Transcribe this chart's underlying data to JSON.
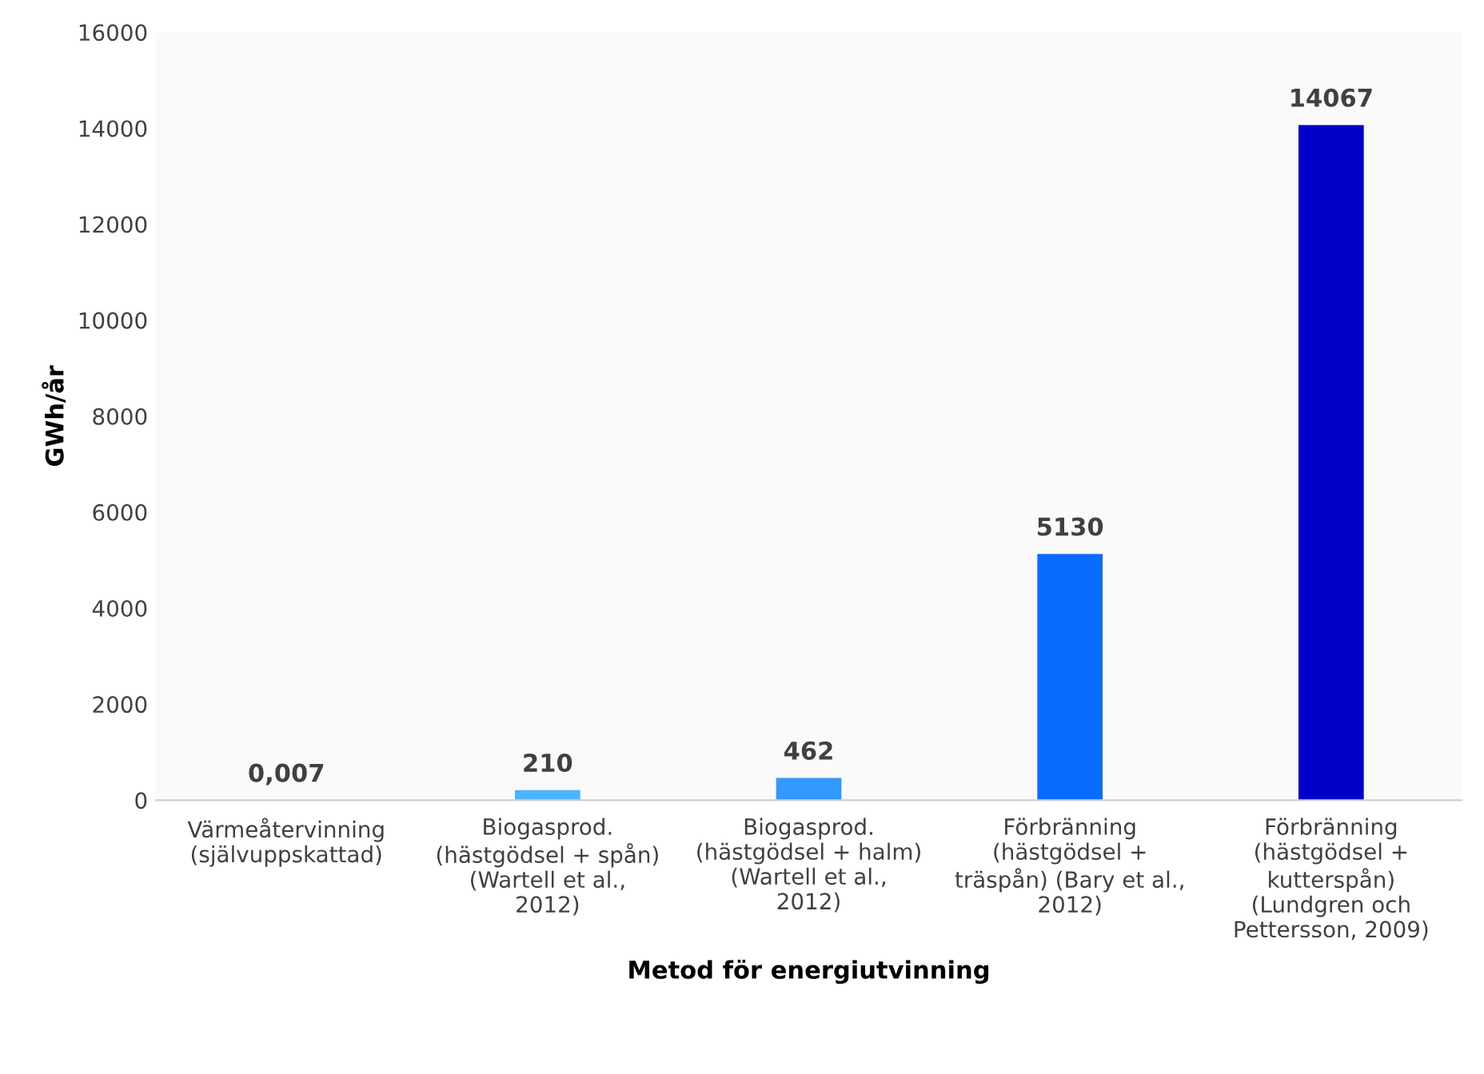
{
  "chart_data": {
    "type": "bar",
    "xlabel": "Metod för energiutvinning",
    "ylabel": "GWh/år",
    "categories": [
      "Värmeåtervinning\n(självuppskattad)",
      "Biogasprod.\n(hästgödsel + spån)\n(Wartell et al.,\n2012)",
      "Biogasprod.\n(hästgödsel + halm)\n(Wartell et al.,\n2012)",
      "Förbränning\n(hästgödsel +\nträspån) (Bary et al.,\n2012)",
      "Förbränning\n(hästgödsel +\nkutterspån)\n(Lundgren och\nPettersson, 2009)"
    ],
    "values": [
      0.007,
      210,
      462,
      5130,
      14067
    ],
    "colors": [
      "#a6d8ff",
      "#4db3ff",
      "#3399ff",
      "#0a6cff",
      "#0000c8"
    ],
    "value_labels": [
      "0,007",
      "210",
      "462",
      "5130",
      "14067"
    ],
    "ylim": [
      0,
      16000
    ],
    "yticks": [
      0,
      2000,
      4000,
      6000,
      8000,
      10000,
      12000,
      14000,
      16000
    ],
    "grid": false,
    "legend": false
  }
}
